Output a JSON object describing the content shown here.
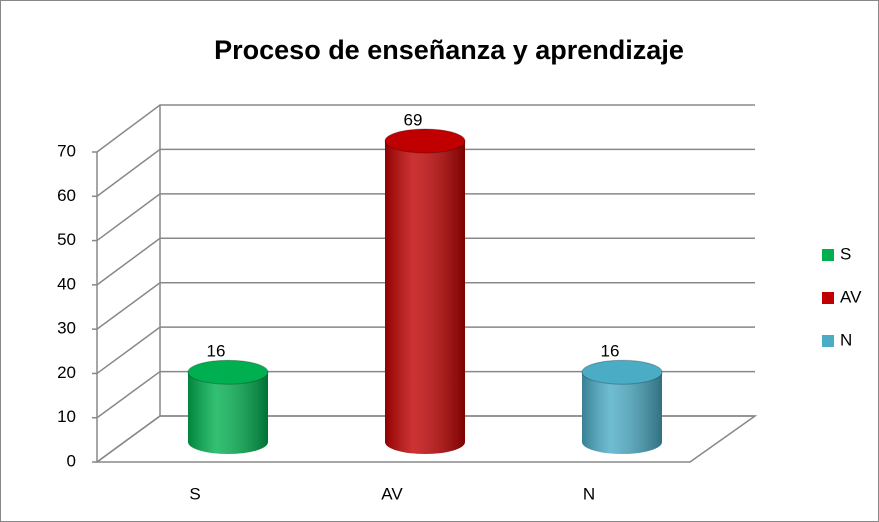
{
  "chart_data": {
    "type": "bar",
    "title": "Proceso de enseñanza y aprendizaje",
    "categories": [
      "S",
      "AV",
      "N"
    ],
    "values": [
      16,
      69,
      16
    ],
    "colors": [
      "#00b050",
      "#c00000",
      "#4bacc6"
    ],
    "ylim": [
      0,
      70
    ],
    "yticks": [
      0,
      10,
      20,
      30,
      40,
      50,
      60,
      70
    ],
    "grid": true,
    "legend": "right"
  }
}
